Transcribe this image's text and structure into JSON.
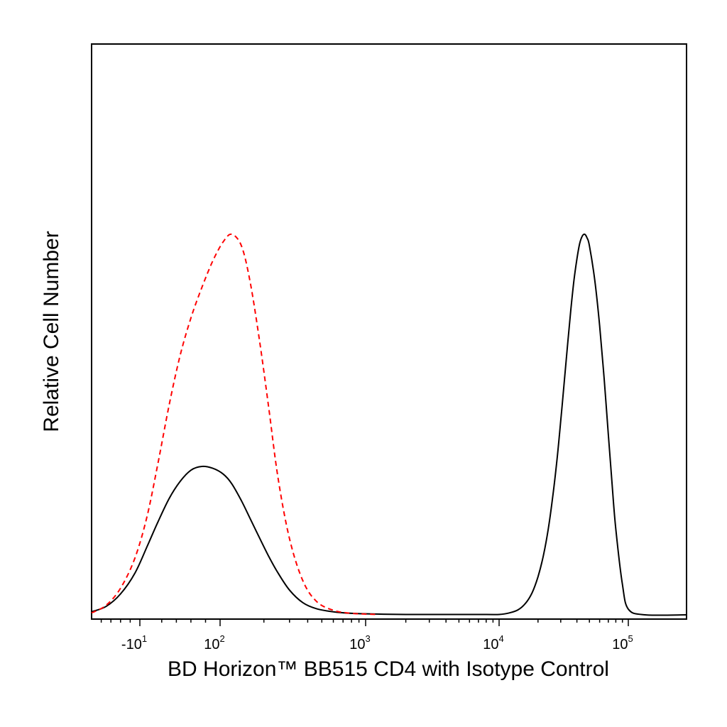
{
  "chart_data": {
    "type": "line",
    "title": "",
    "xlabel": "BD Horizon™ BB515 CD4  with Isotype Control",
    "ylabel": "Relative Cell Number",
    "x_scale": "biexponential",
    "xlim": [
      -60,
      250000
    ],
    "ylim": [
      0,
      100
    ],
    "grid": false,
    "legend": "none",
    "x_ticks": [
      {
        "base": "-10",
        "exp": "1",
        "value": -10
      },
      {
        "base": "10",
        "exp": "2",
        "value": 100
      },
      {
        "base": "10",
        "exp": "3",
        "value": 1000
      },
      {
        "base": "10",
        "exp": "4",
        "value": 10000
      },
      {
        "base": "10",
        "exp": "5",
        "value": 100000
      }
    ],
    "series": [
      {
        "style": "solid",
        "color": "#000000",
        "x": [
          -60,
          -45,
          -30,
          -15,
          0,
          15,
          30,
          45,
          60,
          75,
          90,
          105,
          120,
          140,
          160,
          185,
          215,
          250,
          300,
          370,
          460,
          600,
          800,
          1200,
          2000,
          4000,
          8000,
          10000,
          12000,
          14000,
          16000,
          18000,
          20000,
          22000,
          24000,
          26000,
          28000,
          30000,
          32000,
          34000,
          36000,
          38000,
          40000,
          42000,
          44000,
          46000,
          48000,
          50000,
          55000,
          60000,
          65000,
          70000,
          75000,
          80000,
          90000,
          100000,
          130000,
          250000
        ],
        "y": [
          0.8,
          2.2,
          5.5,
          11,
          18,
          24.5,
          30.5,
          35,
          38,
          39,
          38.5,
          37,
          34.5,
          30,
          25.5,
          20.5,
          15.5,
          11,
          6.5,
          3.2,
          1.6,
          0.8,
          0.4,
          0.2,
          0.1,
          0.1,
          0.1,
          0.1,
          0.5,
          1.3,
          3,
          5.8,
          10,
          15.5,
          22.5,
          31,
          40.5,
          51,
          61.5,
          71.5,
          80.5,
          88,
          93.5,
          97.5,
          99.5,
          100,
          99,
          97,
          88,
          76,
          62,
          47.5,
          34,
          22.5,
          8,
          1.5,
          0,
          0
        ]
      },
      {
        "style": "dashed",
        "color": "#ff0000",
        "x": [
          -60,
          -45,
          -30,
          -15,
          0,
          15,
          30,
          45,
          60,
          75,
          90,
          105,
          120,
          140,
          160,
          185,
          215,
          250,
          300,
          370,
          460,
          600,
          800,
          1200
        ],
        "y": [
          0.5,
          2.5,
          7,
          15,
          26,
          40,
          55,
          68,
          78,
          86,
          93,
          98,
          100,
          97,
          88,
          73,
          55,
          36,
          20,
          9,
          3.5,
          1.2,
          0.4,
          0.1
        ]
      }
    ]
  }
}
